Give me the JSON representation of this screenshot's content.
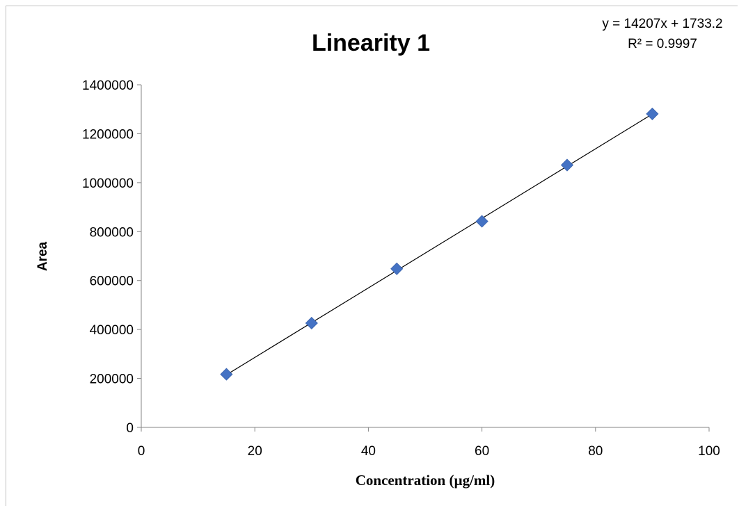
{
  "chart_data": {
    "type": "scatter",
    "title": "Linearity 1",
    "xlabel": "Concentration (µg/ml)",
    "ylabel": "Area",
    "xlim": [
      0,
      100
    ],
    "ylim": [
      0,
      1400000
    ],
    "x_ticks": [
      0,
      20,
      40,
      60,
      80,
      100
    ],
    "y_ticks": [
      0,
      200000,
      400000,
      600000,
      800000,
      1000000,
      1200000,
      1400000
    ],
    "x_tick_labels": [
      "0",
      "20",
      "40",
      "60",
      "80",
      "100"
    ],
    "y_tick_labels": [
      "0",
      "200000",
      "400000",
      "600000",
      "800000",
      "1000000",
      "1200000",
      "1400000"
    ],
    "grid": false,
    "legend": "none",
    "series": [
      {
        "x": [
          15,
          30,
          45,
          60,
          75,
          90
        ],
        "y": [
          217000,
          426000,
          648000,
          842000,
          1072000,
          1281000
        ],
        "color": "#4472C4",
        "marker": "diamond"
      }
    ],
    "trendline": {
      "type": "linear",
      "slope": 14207,
      "intercept": 1733.2,
      "x_range": [
        15,
        90
      ],
      "color": "#000000",
      "equation_label": "y = 14207x + 1733.2",
      "r2_label": "R² = 0.9997"
    }
  }
}
